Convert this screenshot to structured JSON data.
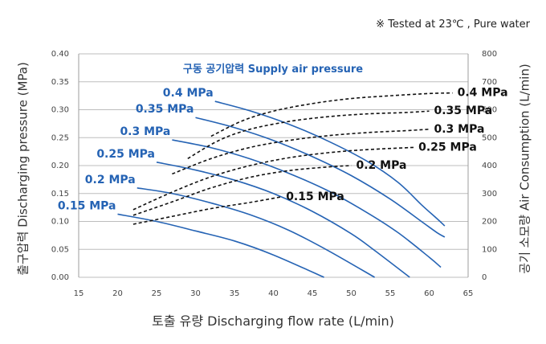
{
  "note": "※  Tested at  23℃ , Pure water",
  "chart_data": {
    "type": "line",
    "title": "구동 공기압력 Supply air pressure",
    "xlabel": "토출 유량 Discharging flow rate (L/min)",
    "ylabel": "출구압력 Discharging pressure (MPa)",
    "y2label": "공기 소모량 Air Consumption (L/min)",
    "xlim": [
      15,
      65
    ],
    "ylim": [
      0,
      0.4
    ],
    "y2lim": [
      0,
      800
    ],
    "x_ticks": [
      "15",
      "20",
      "25",
      "30",
      "35",
      "40",
      "45",
      "50",
      "55",
      "60",
      "65"
    ],
    "y_ticks": [
      "0.00",
      "0.05",
      "0.10",
      "0.15",
      "0.20",
      "0.25",
      "0.30",
      "0.35",
      "0.40"
    ],
    "y2_ticks": [
      "0",
      "100",
      "200",
      "300",
      "400",
      "500",
      "600",
      "700",
      "800"
    ],
    "grid": "horizontal",
    "pressure_series": [
      {
        "name": "0.15 MPa",
        "color": "#2563b4",
        "points": [
          [
            20,
            0.113
          ],
          [
            25,
            0.1
          ],
          [
            30,
            0.083
          ],
          [
            35,
            0.065
          ],
          [
            40,
            0.04
          ],
          [
            46.5,
            0.0
          ]
        ]
      },
      {
        "name": "0.2 MPa",
        "color": "#2563b4",
        "points": [
          [
            22.5,
            0.16
          ],
          [
            27,
            0.15
          ],
          [
            32,
            0.133
          ],
          [
            37,
            0.112
          ],
          [
            42,
            0.084
          ],
          [
            47,
            0.048
          ],
          [
            53,
            0.0
          ]
        ]
      },
      {
        "name": "0.25 MPa",
        "color": "#2563b4",
        "points": [
          [
            25,
            0.206
          ],
          [
            30,
            0.192
          ],
          [
            35,
            0.174
          ],
          [
            40,
            0.15
          ],
          [
            45,
            0.118
          ],
          [
            50,
            0.078
          ],
          [
            53,
            0.048
          ],
          [
            57.5,
            0.0
          ]
        ]
      },
      {
        "name": "0.3 MPa",
        "color": "#2563b4",
        "points": [
          [
            27,
            0.246
          ],
          [
            32,
            0.232
          ],
          [
            37,
            0.212
          ],
          [
            42,
            0.186
          ],
          [
            47,
            0.155
          ],
          [
            52,
            0.116
          ],
          [
            56,
            0.08
          ],
          [
            60,
            0.036
          ],
          [
            61.5,
            0.018
          ]
        ]
      },
      {
        "name": "0.35 MPa",
        "color": "#2563b4",
        "points": [
          [
            30,
            0.286
          ],
          [
            35,
            0.268
          ],
          [
            40,
            0.245
          ],
          [
            45,
            0.216
          ],
          [
            50,
            0.182
          ],
          [
            55,
            0.14
          ],
          [
            59,
            0.1
          ],
          [
            61,
            0.08
          ],
          [
            62,
            0.072
          ]
        ]
      },
      {
        "name": "0.4 MPa",
        "color": "#2563b4",
        "points": [
          [
            32.5,
            0.315
          ],
          [
            37,
            0.298
          ],
          [
            42,
            0.274
          ],
          [
            47,
            0.244
          ],
          [
            52,
            0.208
          ],
          [
            56,
            0.17
          ],
          [
            59,
            0.13
          ],
          [
            61,
            0.105
          ],
          [
            62,
            0.092
          ]
        ]
      }
    ],
    "air_series": [
      {
        "name": "0.15 MPa",
        "color": "#111111",
        "points": [
          [
            22,
            190
          ],
          [
            27,
            218
          ],
          [
            32,
            246
          ],
          [
            37,
            268
          ],
          [
            41,
            288
          ]
        ]
      },
      {
        "name": "0.2 MPa",
        "color": "#111111",
        "points": [
          [
            22,
            222
          ],
          [
            27,
            270
          ],
          [
            32,
            320
          ],
          [
            37,
            358
          ],
          [
            42,
            382
          ],
          [
            47,
            395
          ],
          [
            50,
            400
          ]
        ]
      },
      {
        "name": "0.25 MPa",
        "color": "#111111",
        "points": [
          [
            22,
            242
          ],
          [
            27,
            305
          ],
          [
            32,
            360
          ],
          [
            37,
            400
          ],
          [
            42,
            428
          ],
          [
            47,
            446
          ],
          [
            52,
            457
          ],
          [
            58,
            465
          ]
        ]
      },
      {
        "name": "0.3 MPa",
        "color": "#111111",
        "points": [
          [
            27,
            370
          ],
          [
            32,
            425
          ],
          [
            37,
            465
          ],
          [
            42,
            490
          ],
          [
            47,
            507
          ],
          [
            52,
            518
          ],
          [
            57,
            525
          ],
          [
            60,
            530
          ]
        ]
      },
      {
        "name": "0.35 MPa",
        "color": "#111111",
        "points": [
          [
            29,
            425
          ],
          [
            33,
            490
          ],
          [
            37,
            530
          ],
          [
            42,
            558
          ],
          [
            47,
            575
          ],
          [
            52,
            585
          ],
          [
            57,
            590
          ],
          [
            60,
            595
          ]
        ]
      },
      {
        "name": "0.4 MPa",
        "color": "#111111",
        "points": [
          [
            32,
            505
          ],
          [
            36,
            560
          ],
          [
            40,
            595
          ],
          [
            45,
            622
          ],
          [
            50,
            640
          ],
          [
            55,
            650
          ],
          [
            60,
            658
          ],
          [
            63,
            660
          ]
        ]
      }
    ]
  }
}
